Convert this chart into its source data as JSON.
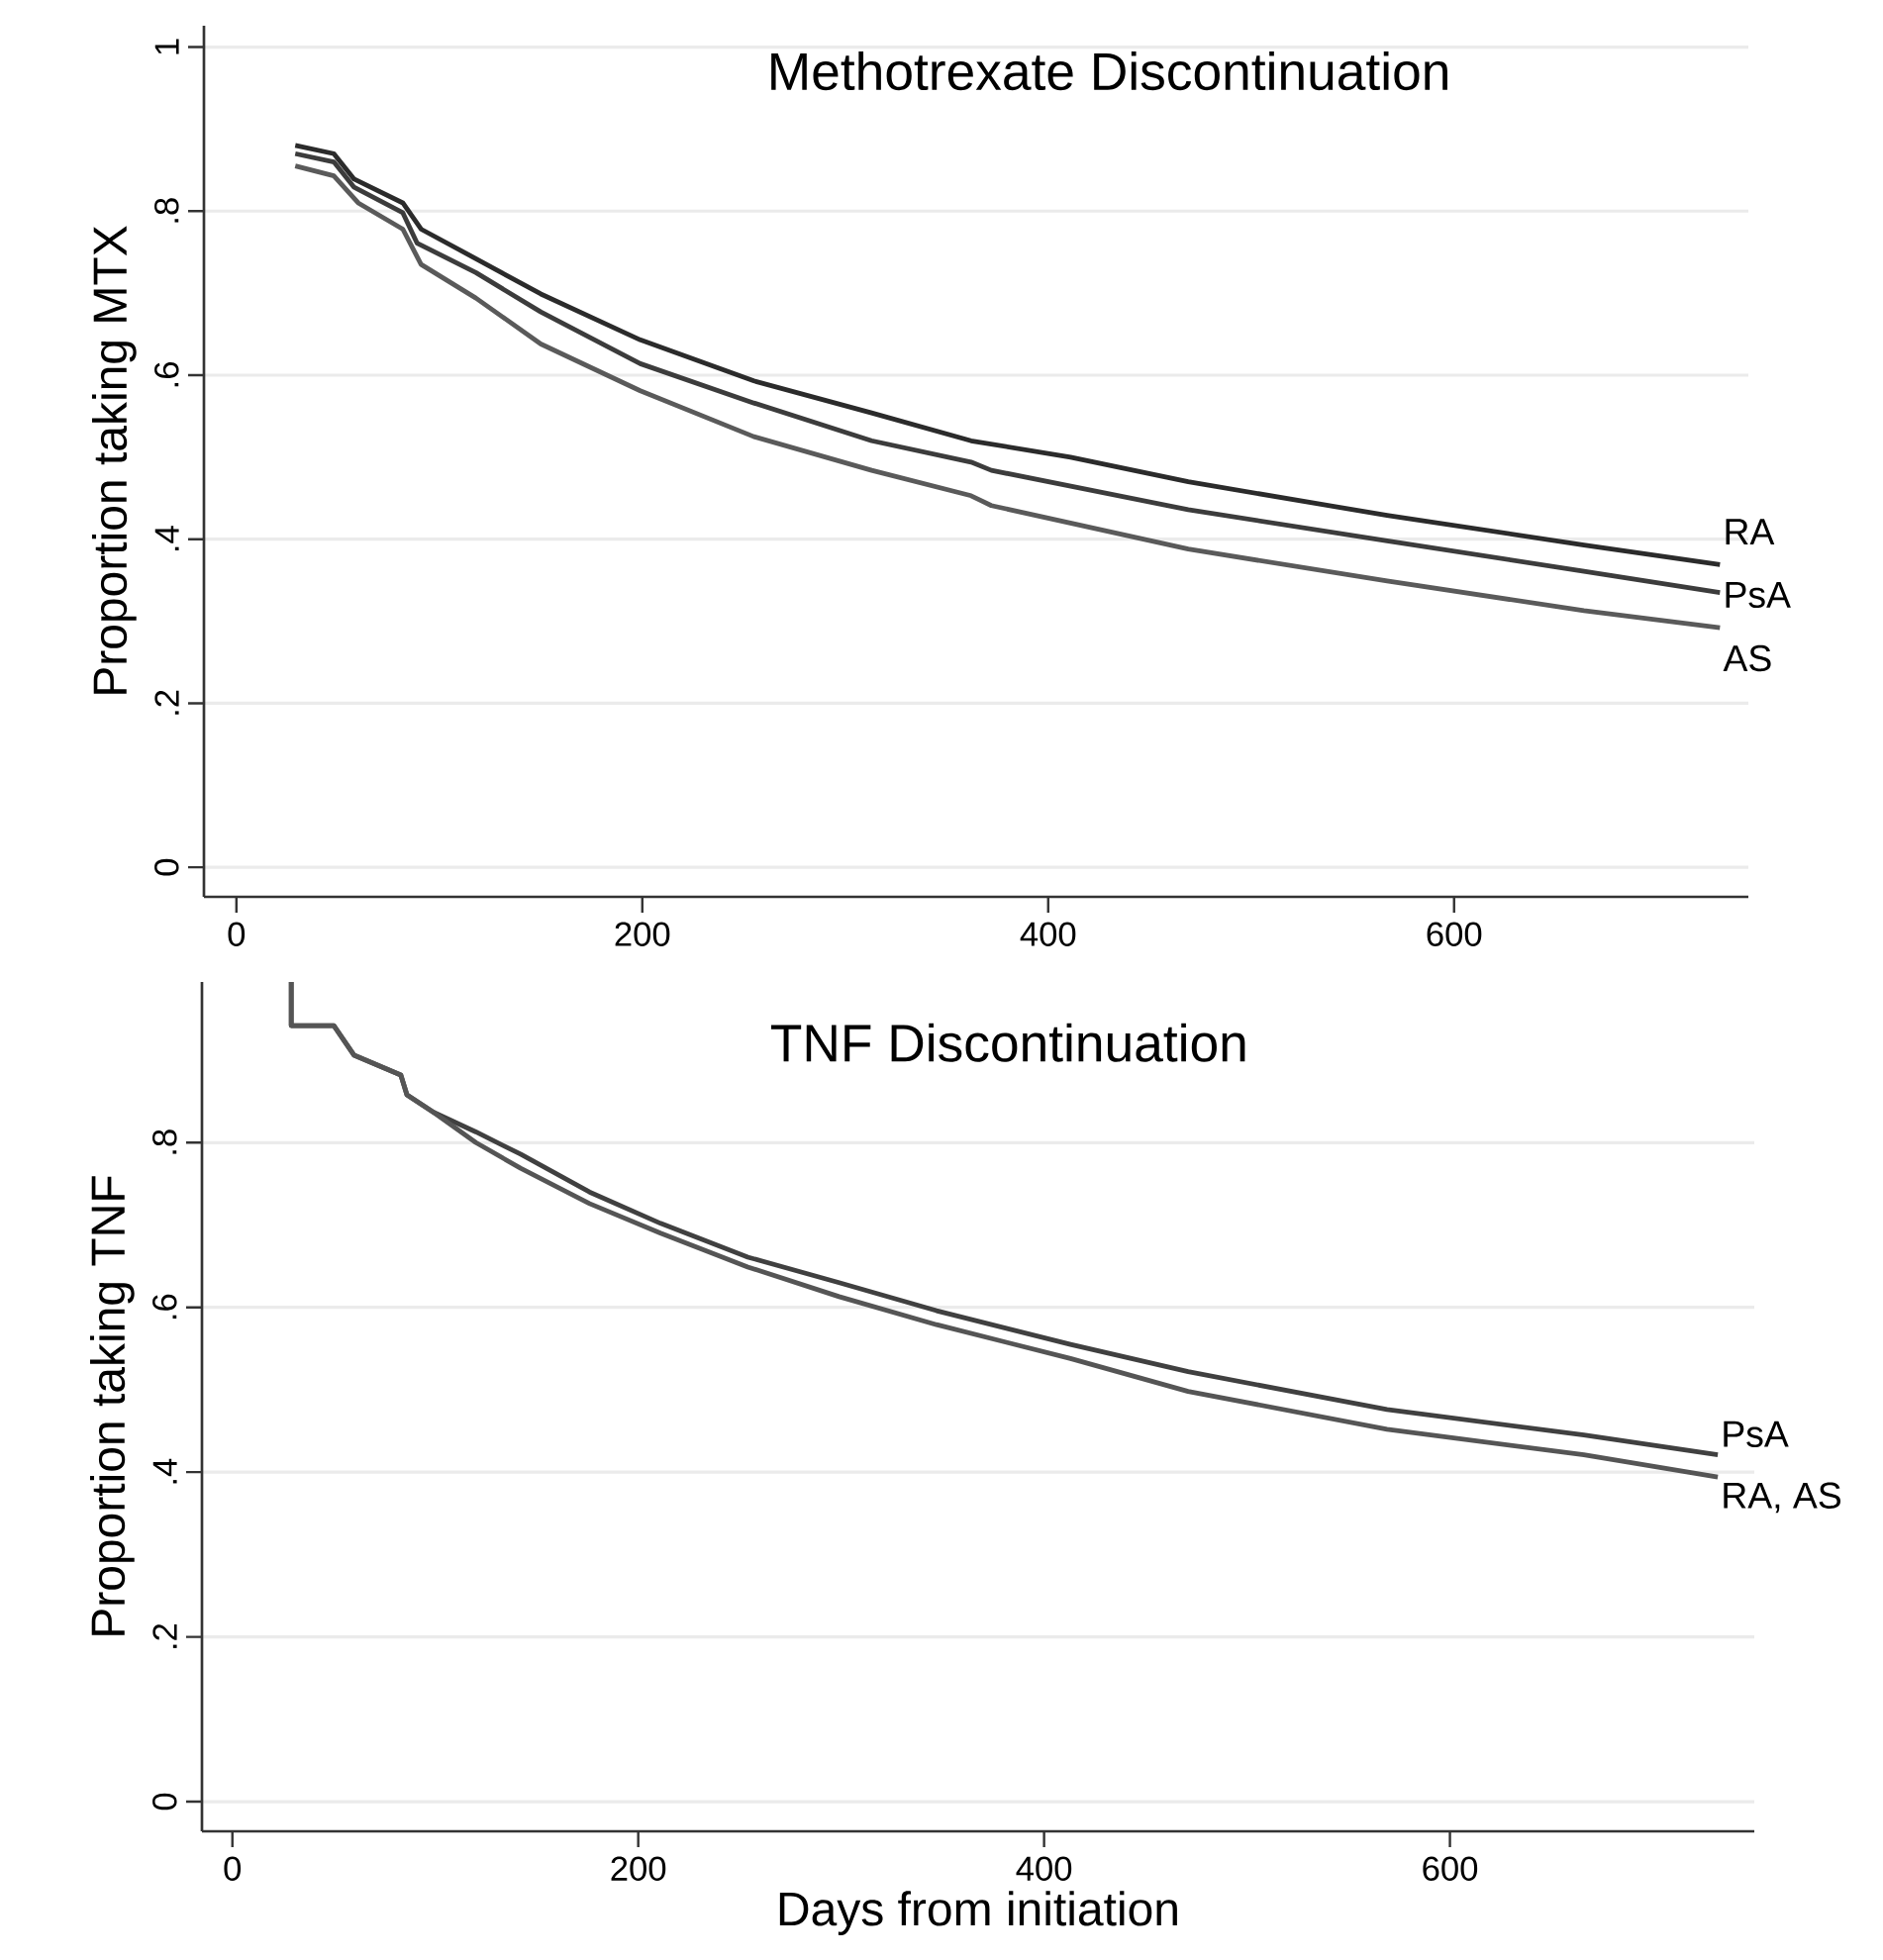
{
  "chart_data": [
    {
      "type": "line",
      "title": "Methotrexate Discontinuation",
      "ylabel": "Proportion taking MTX",
      "xlim": [
        -16,
        745
      ],
      "ylim": [
        -0.036,
        1.026
      ],
      "xticks": [
        0,
        200,
        400,
        600
      ],
      "yticks": [
        {
          "value": 0,
          "label": "0"
        },
        {
          "value": 0.2,
          "label": ".2"
        },
        {
          "value": 0.4,
          "label": ".4"
        },
        {
          "value": 0.6,
          "label": ".6"
        },
        {
          "value": 0.8,
          "label": ".8"
        },
        {
          "value": 1,
          "label": "1"
        }
      ],
      "grid": "y",
      "series": [
        {
          "name": "RA",
          "color": "#2b2b2b",
          "x": [
            29,
            48,
            58,
            82,
            91,
            118,
            150,
            199,
            255,
            313,
            362,
            411,
            469,
            567,
            664,
            731
          ],
          "values": [
            0.88,
            0.87,
            0.839,
            0.81,
            0.778,
            0.742,
            0.699,
            0.643,
            0.593,
            0.554,
            0.52,
            0.5,
            0.47,
            0.429,
            0.393,
            0.369
          ]
        },
        {
          "name": "PsA",
          "color": "#3c3c3c",
          "x": [
            29,
            48,
            58,
            82,
            89,
            118,
            150,
            199,
            255,
            313,
            362,
            372,
            469,
            567,
            664,
            731
          ],
          "values": [
            0.87,
            0.86,
            0.829,
            0.798,
            0.761,
            0.725,
            0.677,
            0.614,
            0.566,
            0.52,
            0.494,
            0.484,
            0.436,
            0.398,
            0.361,
            0.335
          ]
        },
        {
          "name": "AS",
          "color": "#5a5a5a",
          "x": [
            29,
            48,
            60,
            82,
            91,
            118,
            150,
            199,
            255,
            313,
            362,
            372,
            469,
            567,
            664,
            731
          ],
          "values": [
            0.855,
            0.843,
            0.81,
            0.778,
            0.735,
            0.694,
            0.638,
            0.581,
            0.525,
            0.484,
            0.453,
            0.441,
            0.388,
            0.349,
            0.313,
            0.292
          ]
        }
      ]
    },
    {
      "type": "line",
      "title": "TNF Discontinuation",
      "xlabel": "Days from initiation",
      "ylabel": "Proportion taking TNF",
      "xlim": [
        -15,
        750
      ],
      "ylim": [
        -0.036,
        0.995
      ],
      "xticks": [
        0,
        200,
        400,
        600
      ],
      "yticks": [
        {
          "value": 0,
          "label": "0"
        },
        {
          "value": 0.2,
          "label": ".2"
        },
        {
          "value": 0.4,
          "label": ".4"
        },
        {
          "value": 0.6,
          "label": ".6"
        },
        {
          "value": 0.8,
          "label": ".8"
        }
      ],
      "grid": "y",
      "series": [
        {
          "name": "PsA",
          "color": "#404040",
          "x": [
            29,
            29,
            50,
            60,
            83,
            86,
            99,
            120,
            142,
            176,
            211,
            254,
            299,
            347,
            413,
            471,
            569,
            666,
            732
          ],
          "values": [
            0.995,
            0.942,
            0.942,
            0.906,
            0.882,
            0.858,
            0.837,
            0.813,
            0.786,
            0.74,
            0.702,
            0.661,
            0.63,
            0.596,
            0.555,
            0.522,
            0.476,
            0.445,
            0.421
          ]
        },
        {
          "name": "RA, AS",
          "color": "#555555",
          "x": [
            29,
            29,
            50,
            60,
            83,
            86,
            99,
            120,
            142,
            176,
            211,
            254,
            299,
            347,
            413,
            471,
            569,
            666,
            732
          ],
          "values": [
            0.995,
            0.942,
            0.942,
            0.906,
            0.882,
            0.858,
            0.837,
            0.8,
            0.769,
            0.726,
            0.69,
            0.649,
            0.613,
            0.579,
            0.538,
            0.498,
            0.452,
            0.421,
            0.394
          ]
        }
      ]
    }
  ]
}
